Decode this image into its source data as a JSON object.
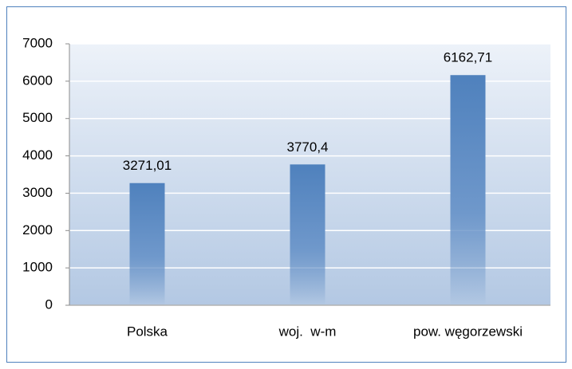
{
  "chart_data": {
    "type": "bar",
    "categories": [
      "Polska",
      "woj.  w-m",
      "pow. węgorzewski"
    ],
    "values": [
      3271.01,
      3770.4,
      6162.71
    ],
    "value_labels": [
      "3271,01",
      "3770,4",
      "6162,71"
    ],
    "color": "#4f81bd",
    "ylim": [
      0,
      7000
    ],
    "yticks": [
      0,
      1000,
      2000,
      3000,
      4000,
      5000,
      6000,
      7000
    ],
    "grid": true
  }
}
